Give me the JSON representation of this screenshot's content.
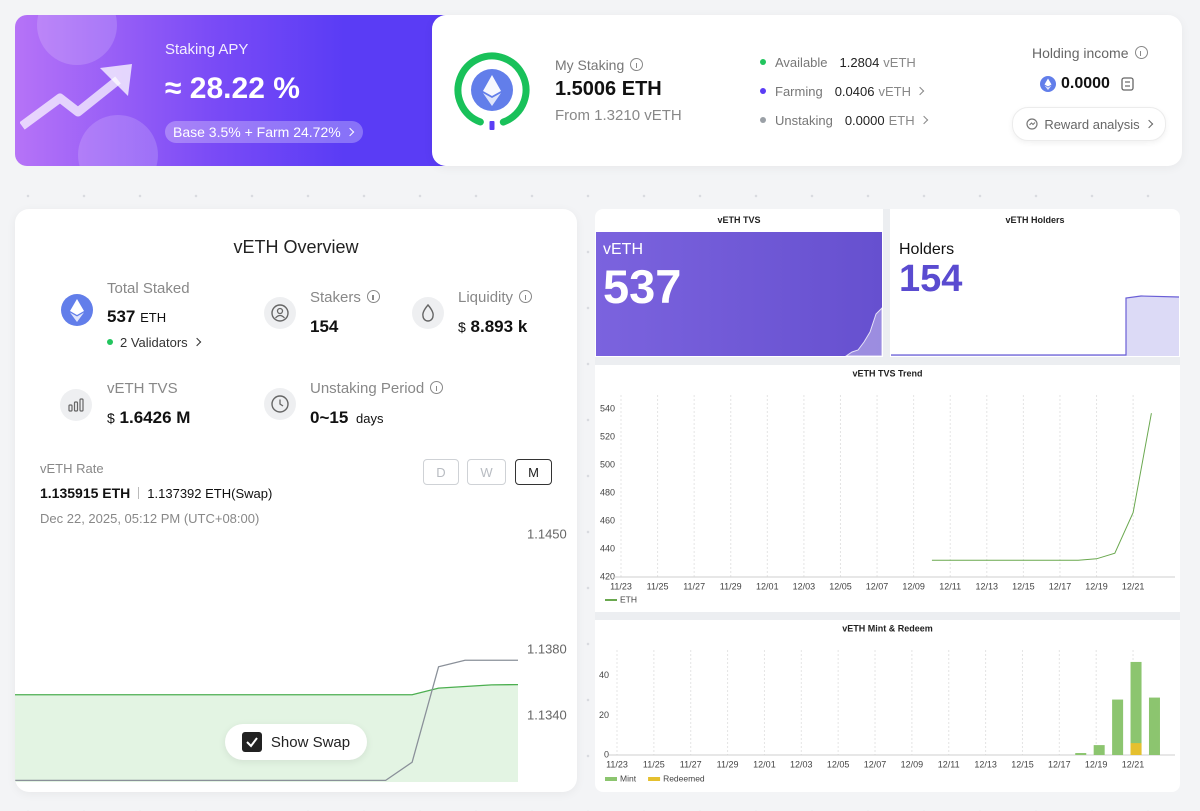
{
  "apy": {
    "label": "Staking APY",
    "value": "≈ 28.22 %",
    "breakdown": "Base 3.5% + Farm 24.72%"
  },
  "staking": {
    "label": "My Staking",
    "amount": "1.5006 ETH",
    "source": "From 1.3210 vETH",
    "items": [
      {
        "label": "Available",
        "value": "1.2804",
        "unit": "vETH",
        "color": "#22c55e"
      },
      {
        "label": "Farming",
        "value": "0.0406",
        "unit": "vETH",
        "color": "#5b3df5"
      },
      {
        "label": "Unstaking",
        "value": "0.0000",
        "unit": "ETH",
        "color": "#9aa0a6"
      }
    ],
    "income_label": "Holding income",
    "income_value": "0.0000",
    "reward_button": "Reward analysis"
  },
  "overview": {
    "title": "vETH Overview",
    "total_staked": {
      "label": "Total Staked",
      "value": "537",
      "unit": "ETH"
    },
    "validators": "2 Validators",
    "stakers": {
      "label": "Stakers",
      "value": "154"
    },
    "liquidity": {
      "label": "Liquidity",
      "prefix": "$",
      "value": "8.893",
      "unit": "k"
    },
    "tvs": {
      "label": "vETH TVS",
      "prefix": "$",
      "value": "1.6426",
      "unit": "M"
    },
    "unstaking_period": {
      "label": "Unstaking Period",
      "value": "0~15",
      "unit": "days"
    },
    "rate_label": "vETH Rate",
    "rate": "1.135915 ETH",
    "swap_rate": "1.137392 ETH(Swap)",
    "timestamp": "Dec 22, 2025, 05:12 PM (UTC+08:00)",
    "ranges": [
      "D",
      "W",
      "M"
    ],
    "active_range": "M",
    "show_swap": "Show Swap"
  },
  "tvs_card": {
    "title": "vETH TVS",
    "label": "vETH",
    "value": "537"
  },
  "holders_card": {
    "title": "vETH Holders",
    "label": "Holders",
    "value": "154"
  },
  "chart_data": [
    {
      "type": "line",
      "series": [
        {
          "color": "#4caf50",
          "area_color": "#e3f4e3",
          "values": [
            1.1353,
            1.1353,
            1.1353,
            1.1353,
            1.1353,
            1.1353,
            1.1353,
            1.1353,
            1.1353,
            1.1353,
            1.1353,
            1.1353,
            1.1353,
            1.1353,
            1.1353,
            1.1353,
            1.1357,
            1.1358,
            1.1359,
            1.135915
          ]
        },
        {
          "color": "#8a9099",
          "values": [
            1.1301,
            1.1301,
            1.1301,
            1.1301,
            1.1301,
            1.1301,
            1.1301,
            1.1301,
            1.1301,
            1.1301,
            1.1301,
            1.1301,
            1.1301,
            1.1301,
            1.1301,
            1.1312,
            1.137,
            1.137392,
            1.137392,
            1.137392
          ]
        }
      ],
      "ylim": [
        1.13,
        1.145
      ],
      "yticks": [
        {
          "value": 1.145,
          "label": "1.1450"
        },
        {
          "value": 1.138,
          "label": "1.1380"
        },
        {
          "value": 1.134,
          "label": "1.1340"
        }
      ],
      "grid": false
    },
    {
      "type": "line",
      "title": "vETH TVS Trend",
      "categories": [
        "11/23",
        null,
        "11/25",
        null,
        "11/27",
        null,
        "11/29",
        null,
        "12/01",
        null,
        "12/03",
        null,
        "12/05",
        null,
        "12/07",
        null,
        "12/09",
        null,
        "12/11",
        null,
        "12/13",
        null,
        "12/15",
        null,
        "12/17",
        null,
        "12/19",
        null,
        "12/21",
        null
      ],
      "series": [
        {
          "name": "ETH",
          "color": "#6aa84f",
          "values": [
            null,
            null,
            null,
            null,
            null,
            null,
            null,
            null,
            null,
            null,
            null,
            null,
            null,
            null,
            null,
            null,
            null,
            432,
            432,
            432,
            432,
            432,
            432,
            432,
            432,
            432,
            433,
            437,
            466,
            537
          ]
        }
      ],
      "ylim": [
        420,
        540
      ],
      "yticks": [
        420,
        440,
        460,
        480,
        500,
        520,
        540
      ],
      "grid": "x",
      "legend": "bottom-left"
    },
    {
      "type": "bar",
      "title": "vETH Mint & Redeem",
      "categories": [
        "11/23",
        null,
        "11/25",
        null,
        "11/27",
        null,
        "11/29",
        null,
        "12/01",
        null,
        "12/03",
        null,
        "12/05",
        null,
        "12/07",
        null,
        "12/09",
        null,
        "12/11",
        null,
        "12/13",
        null,
        "12/15",
        null,
        "12/17",
        null,
        "12/19",
        null,
        "12/21",
        null
      ],
      "series": [
        {
          "name": "Mint",
          "color": "#8cc56f",
          "values": [
            0,
            0,
            0,
            0,
            0,
            0,
            0,
            0,
            0,
            0,
            0,
            0,
            0,
            0,
            0,
            0,
            0,
            0,
            0,
            0,
            0,
            0,
            0,
            0,
            0,
            1,
            5,
            28,
            47,
            29
          ]
        },
        {
          "name": "Redeemed",
          "color": "#e5c02f",
          "values": [
            0,
            0,
            0,
            0,
            0,
            0,
            0,
            0,
            0,
            0,
            0,
            0,
            0,
            0,
            0,
            0,
            0,
            0,
            0,
            0,
            0,
            0,
            0,
            0,
            0,
            0,
            0,
            0,
            6,
            0
          ]
        }
      ],
      "ylim": [
        0,
        50
      ],
      "yticks": [
        0,
        20,
        40
      ],
      "grid": "x",
      "legend": "bottom-left"
    }
  ]
}
